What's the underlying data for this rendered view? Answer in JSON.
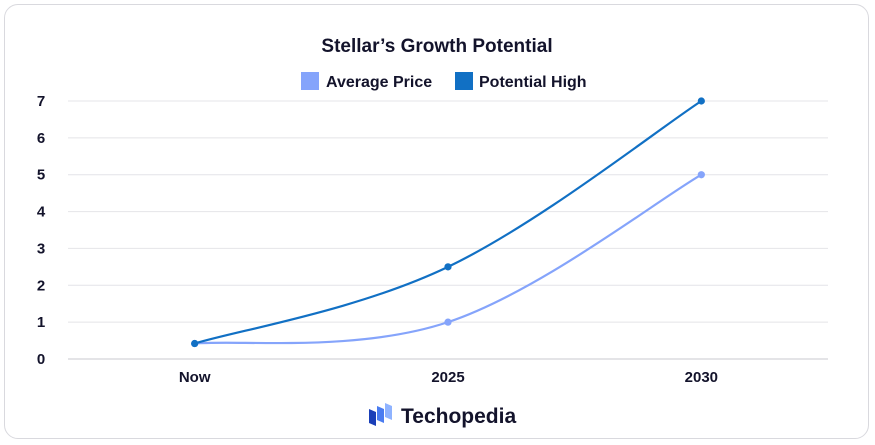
{
  "chart_data": {
    "type": "line",
    "title": "Stellar’s Growth Potential",
    "categories": [
      "Now",
      "2025",
      "2030"
    ],
    "series": [
      {
        "name": "Average Price",
        "values": [
          0.42,
          1,
          5
        ],
        "color": "#85a4fb"
      },
      {
        "name": "Potential High",
        "values": [
          0.42,
          2.5,
          7
        ],
        "color": "#1170c4"
      }
    ],
    "ylim": [
      0,
      7
    ],
    "yticks": [
      "0",
      "1",
      "2",
      "3",
      "4",
      "5",
      "6",
      "7"
    ],
    "grid": true,
    "legend": "top-center",
    "xlabel": "",
    "ylabel": ""
  },
  "branding": {
    "name": "Techopedia",
    "logo_colors": [
      "#1a3fb8",
      "#4a7cf0",
      "#8fb3ff"
    ]
  }
}
